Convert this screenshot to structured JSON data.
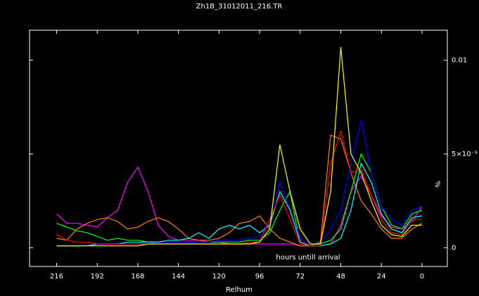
{
  "chart_data": {
    "type": "line",
    "title": "Zh1B_31012011_216.TR",
    "x_label": "Relhum",
    "y_label": "%",
    "annotation": "hours untill arrival",
    "x": [
      216,
      210,
      204,
      198,
      192,
      186,
      180,
      174,
      168,
      162,
      156,
      150,
      144,
      138,
      132,
      126,
      120,
      114,
      108,
      102,
      96,
      90,
      84,
      78,
      72,
      66,
      60,
      54,
      48,
      42,
      36,
      30,
      24,
      18,
      12,
      6,
      0
    ],
    "xlim": [
      232,
      -15
    ],
    "xticks": [
      216,
      192,
      168,
      144,
      120,
      96,
      72,
      48,
      24,
      0
    ],
    "ylim": [
      -0.001,
      0.0116
    ],
    "yticks": [
      0,
      {
        "value": 0.005,
        "label": "5×10⁻³"
      },
      0.01
    ],
    "series": [
      {
        "color": "#ff00ff",
        "values": [
          0.0018,
          0.0013,
          0.0013,
          0.0012,
          0.0011,
          0.0016,
          0.002,
          0.0035,
          0.0043,
          0.003,
          0.0012,
          0.0006,
          0.0004,
          0.0004,
          0.0004,
          0.0003,
          0.0003,
          0.0002,
          0.0002,
          0.0002,
          0.0002,
          0.0002,
          0.0002,
          0.0002,
          0.0001,
          0.0001,
          0.0001,
          0.0002,
          0.0012,
          0.003,
          0.0038,
          0.0028,
          0.0017,
          0.0011,
          0.001,
          0.0014,
          0.0022
        ]
      },
      {
        "color": "#ff8000",
        "values": [
          0.0005,
          0.0004,
          0.001,
          0.0013,
          0.0015,
          0.0016,
          0.0014,
          0.001,
          0.0011,
          0.0014,
          0.0016,
          0.0014,
          0.001,
          0.0005,
          0.0004,
          0.0004,
          0.0005,
          0.0008,
          0.0013,
          0.0014,
          0.0017,
          0.001,
          0.0005,
          0.0003,
          0.0001,
          0.0001,
          0.0003,
          0.006,
          0.0058,
          0.004,
          0.0025,
          0.0018,
          0.001,
          0.0005,
          0.0005,
          0.001,
          0.0013
        ]
      },
      {
        "color": "#00ff00",
        "values": [
          0.0013,
          0.0011,
          0.0009,
          0.0008,
          0.0006,
          0.0004,
          0.0005,
          0.0004,
          0.0004,
          0.0003,
          0.0003,
          0.0003,
          0.0003,
          0.0003,
          0.0003,
          0.0003,
          0.0003,
          0.0003,
          0.0003,
          0.0004,
          0.0004,
          0.0008,
          0.002,
          0.003,
          0.0002,
          0.0001,
          0.0002,
          0.0004,
          0.001,
          0.003,
          0.005,
          0.004,
          0.0022,
          0.0012,
          0.001,
          0.0018,
          0.002
        ]
      },
      {
        "color": "#0000ff",
        "values": [
          0.0001,
          0.0001,
          0.0001,
          0.0001,
          0.0001,
          0.0002,
          0.0002,
          0.0002,
          0.0002,
          0.0002,
          0.0003,
          0.0003,
          0.0003,
          0.0003,
          0.0003,
          0.0003,
          0.0004,
          0.0004,
          0.0004,
          0.0005,
          0.0006,
          0.0015,
          0.0035,
          0.002,
          0.0005,
          0.0001,
          0.0002,
          0.001,
          0.002,
          0.0045,
          0.0068,
          0.004,
          0.0022,
          0.0015,
          0.0012,
          0.002,
          0.0022
        ]
      },
      {
        "color": "#00ffff",
        "values": [
          0.0001,
          0.0001,
          0.0001,
          0.0001,
          0.0002,
          0.0002,
          0.0002,
          0.0003,
          0.0003,
          0.0003,
          0.0003,
          0.0004,
          0.0004,
          0.0005,
          0.0008,
          0.0005,
          0.001,
          0.0012,
          0.001,
          0.0012,
          0.0008,
          0.0012,
          0.003,
          0.002,
          0.0003,
          0.0001,
          0.0001,
          0.0002,
          0.0005,
          0.002,
          0.0045,
          0.0035,
          0.0018,
          0.001,
          0.0008,
          0.0016,
          0.0017
        ]
      },
      {
        "color": "#ff0000",
        "values": [
          0.0007,
          0.0004,
          0.0003,
          0.0003,
          0.0002,
          0.0002,
          0.0002,
          0.0002,
          0.0002,
          0.0002,
          0.0002,
          0.0002,
          0.0002,
          0.0002,
          0.0002,
          0.0002,
          0.0002,
          0.0002,
          0.0002,
          0.0003,
          0.0003,
          0.0015,
          0.0028,
          0.0015,
          0.0002,
          0.0001,
          0.0001,
          0.0045,
          0.0062,
          0.004,
          0.0042,
          0.0028,
          0.0015,
          0.0008,
          0.0007,
          0.0015,
          0.0015
        ]
      },
      {
        "color": "#ffff00",
        "values": [
          0.0001,
          0.0001,
          0.0001,
          0.0001,
          0.0001,
          0.0001,
          0.0001,
          0.0001,
          0.0001,
          0.0002,
          0.0002,
          0.0002,
          0.0002,
          0.0002,
          0.0002,
          0.0002,
          0.0002,
          0.0002,
          0.0002,
          0.0002,
          0.0003,
          0.001,
          0.0055,
          0.003,
          0.001,
          0.0002,
          0.0002,
          0.003,
          0.0107,
          0.005,
          0.004,
          0.0025,
          0.0012,
          0.0007,
          0.0006,
          0.0012,
          0.0012
        ]
      }
    ]
  }
}
